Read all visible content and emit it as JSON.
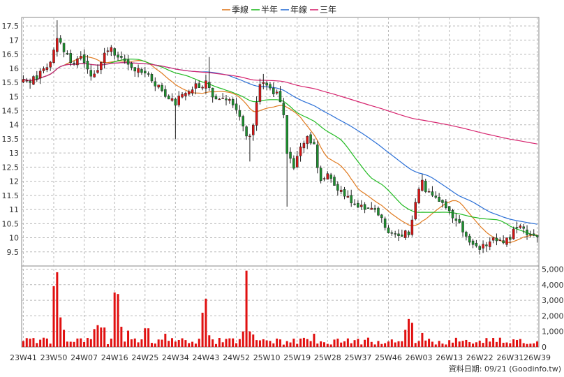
{
  "chart_data": {
    "type": "candlestick",
    "legend": [
      {
        "label": "季線",
        "color": "#e07a1f"
      },
      {
        "label": "半年",
        "color": "#22bb22"
      },
      {
        "label": "年線",
        "color": "#2a6fd6"
      },
      {
        "label": "三年",
        "color": "#d6246e"
      }
    ],
    "price_axis": {
      "min": 9.0,
      "max": 17.8,
      "ticks": [
        9.5,
        10,
        10.5,
        11,
        11.5,
        12,
        12.5,
        13,
        13.5,
        14,
        14.5,
        15,
        15.5,
        16,
        16.5,
        17,
        17.5
      ]
    },
    "volume_axis": {
      "min": 0,
      "max": 5200,
      "ticks": [
        0,
        1000,
        2000,
        3000,
        4000,
        5000
      ],
      "tick_labels": [
        "0",
        "1,000",
        "2,000",
        "3,000",
        "4,000",
        "5,000"
      ]
    },
    "x_labels": [
      {
        "label": "23W41",
        "week": 0
      },
      {
        "label": "23W50",
        "week": 9
      },
      {
        "label": "24W07",
        "week": 18
      },
      {
        "label": "24W16",
        "week": 27
      },
      {
        "label": "24W25",
        "week": 36
      },
      {
        "label": "24W34",
        "week": 45
      },
      {
        "label": "24W43",
        "week": 54
      },
      {
        "label": "24W52",
        "week": 63
      },
      {
        "label": "25W10",
        "week": 72
      },
      {
        "label": "25W19",
        "week": 81
      },
      {
        "label": "25W28",
        "week": 90
      },
      {
        "label": "25W37",
        "week": 99
      },
      {
        "label": "25W46",
        "week": 108
      },
      {
        "label": "26W03",
        "week": 117
      },
      {
        "label": "26W13",
        "week": 126
      },
      {
        "label": "26W22",
        "week": 135
      },
      {
        "label": "26W31",
        "week": 144
      },
      {
        "label": "26W39",
        "week": 152
      }
    ],
    "anchors": [
      [
        0,
        15.5
      ],
      [
        3,
        15.6
      ],
      [
        5,
        15.8
      ],
      [
        8,
        16.3
      ],
      [
        10,
        17.1
      ],
      [
        12,
        16.6
      ],
      [
        14,
        16.2
      ],
      [
        17,
        16.4
      ],
      [
        20,
        15.8
      ],
      [
        22,
        16.0
      ],
      [
        24,
        16.5
      ],
      [
        26,
        16.7
      ],
      [
        28,
        16.3
      ],
      [
        30,
        16.3
      ],
      [
        33,
        16.0
      ],
      [
        36,
        15.9
      ],
      [
        38,
        15.5
      ],
      [
        41,
        15.2
      ],
      [
        43,
        15.0
      ],
      [
        45,
        14.8
      ],
      [
        47,
        15.1
      ],
      [
        49,
        15.1
      ],
      [
        51,
        15.4
      ],
      [
        53,
        15.3
      ],
      [
        54,
        15.6
      ],
      [
        56,
        15.0
      ],
      [
        58,
        15.0
      ],
      [
        60,
        14.9
      ],
      [
        62,
        14.7
      ],
      [
        64,
        14.3
      ],
      [
        66,
        13.6
      ],
      [
        67,
        13.5
      ],
      [
        68,
        14.0
      ],
      [
        69,
        14.8
      ],
      [
        70,
        15.4
      ],
      [
        72,
        15.5
      ],
      [
        74,
        15.2
      ],
      [
        76,
        14.9
      ],
      [
        77,
        14.3
      ],
      [
        78,
        13.0
      ],
      [
        80,
        12.4
      ],
      [
        82,
        13.2
      ],
      [
        84,
        13.5
      ],
      [
        86,
        13.4
      ],
      [
        87,
        12.5
      ],
      [
        88,
        12.0
      ],
      [
        90,
        12.2
      ],
      [
        92,
        11.9
      ],
      [
        94,
        11.6
      ],
      [
        96,
        11.4
      ],
      [
        98,
        11.2
      ],
      [
        100,
        11.1
      ],
      [
        102,
        11.0
      ],
      [
        104,
        10.9
      ],
      [
        106,
        10.6
      ],
      [
        108,
        10.2
      ],
      [
        110,
        10.1
      ],
      [
        112,
        10.1
      ],
      [
        114,
        10.2
      ],
      [
        115,
        10.6
      ],
      [
        116,
        11.2
      ],
      [
        117,
        11.8
      ],
      [
        118,
        12.0
      ],
      [
        119,
        11.7
      ],
      [
        121,
        11.4
      ],
      [
        123,
        11.3
      ],
      [
        125,
        11.0
      ],
      [
        127,
        10.8
      ],
      [
        129,
        10.5
      ],
      [
        131,
        10.1
      ],
      [
        133,
        9.8
      ],
      [
        135,
        9.6
      ],
      [
        136,
        9.7
      ],
      [
        138,
        9.9
      ],
      [
        140,
        9.9
      ],
      [
        142,
        9.9
      ],
      [
        144,
        10.0
      ],
      [
        145,
        10.2
      ],
      [
        146,
        10.4
      ],
      [
        148,
        10.3
      ],
      [
        150,
        10.1
      ],
      [
        152,
        10.0
      ]
    ],
    "volume_spikes": [
      [
        9,
        3900
      ],
      [
        10,
        4800
      ],
      [
        11,
        1900
      ],
      [
        12,
        1100
      ],
      [
        21,
        1150
      ],
      [
        22,
        1400
      ],
      [
        23,
        1250
      ],
      [
        24,
        1250
      ],
      [
        27,
        3500
      ],
      [
        28,
        3400
      ],
      [
        29,
        1300
      ],
      [
        31,
        1050
      ],
      [
        36,
        1200
      ],
      [
        37,
        1200
      ],
      [
        42,
        850
      ],
      [
        53,
        2200
      ],
      [
        54,
        3100
      ],
      [
        55,
        750
      ],
      [
        65,
        1000
      ],
      [
        66,
        4900
      ],
      [
        67,
        1000
      ],
      [
        68,
        800
      ],
      [
        86,
        850
      ],
      [
        113,
        1100
      ],
      [
        114,
        1800
      ],
      [
        115,
        1550
      ],
      [
        118,
        900
      ],
      [
        131,
        450
      ],
      [
        146,
        450
      ]
    ],
    "ma_windows": [
      13,
      26,
      52,
      156
    ],
    "series_colors": {
      "up": "#d81414",
      "down": "#1c8f2e",
      "volume": "#e01010"
    },
    "footer": "資料日期: 09/21  (Goodinfo.tw)"
  }
}
